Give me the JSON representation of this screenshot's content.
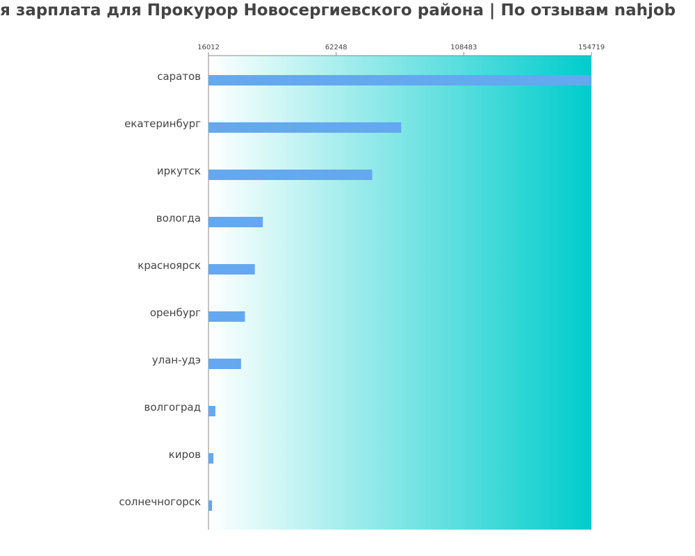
{
  "chart_data": {
    "type": "bar",
    "orientation": "horizontal",
    "title": "Средняя зарплата для Прокурор Новосергиевского района | По отзывам nahjob",
    "axis_ticks": [
      "16012",
      "62248",
      "108483",
      "154719"
    ],
    "xlim": [
      16012,
      154719
    ],
    "categories": [
      "саратов",
      "екатеринбург",
      "иркутск",
      "вологда",
      "красноярск",
      "оренбург",
      "улан-удэ",
      "волгоград",
      "киров",
      "солнечногорск"
    ],
    "values": [
      154719,
      85800,
      75300,
      35700,
      32800,
      29200,
      27800,
      18500,
      17800,
      17300
    ],
    "grid": false,
    "legend": "none"
  },
  "colors": {
    "bar": "#64a8f0",
    "background_gradient_start": "#ffffff",
    "background_gradient_end": "#00cccc",
    "text": "#444444",
    "axis": "#888888"
  }
}
